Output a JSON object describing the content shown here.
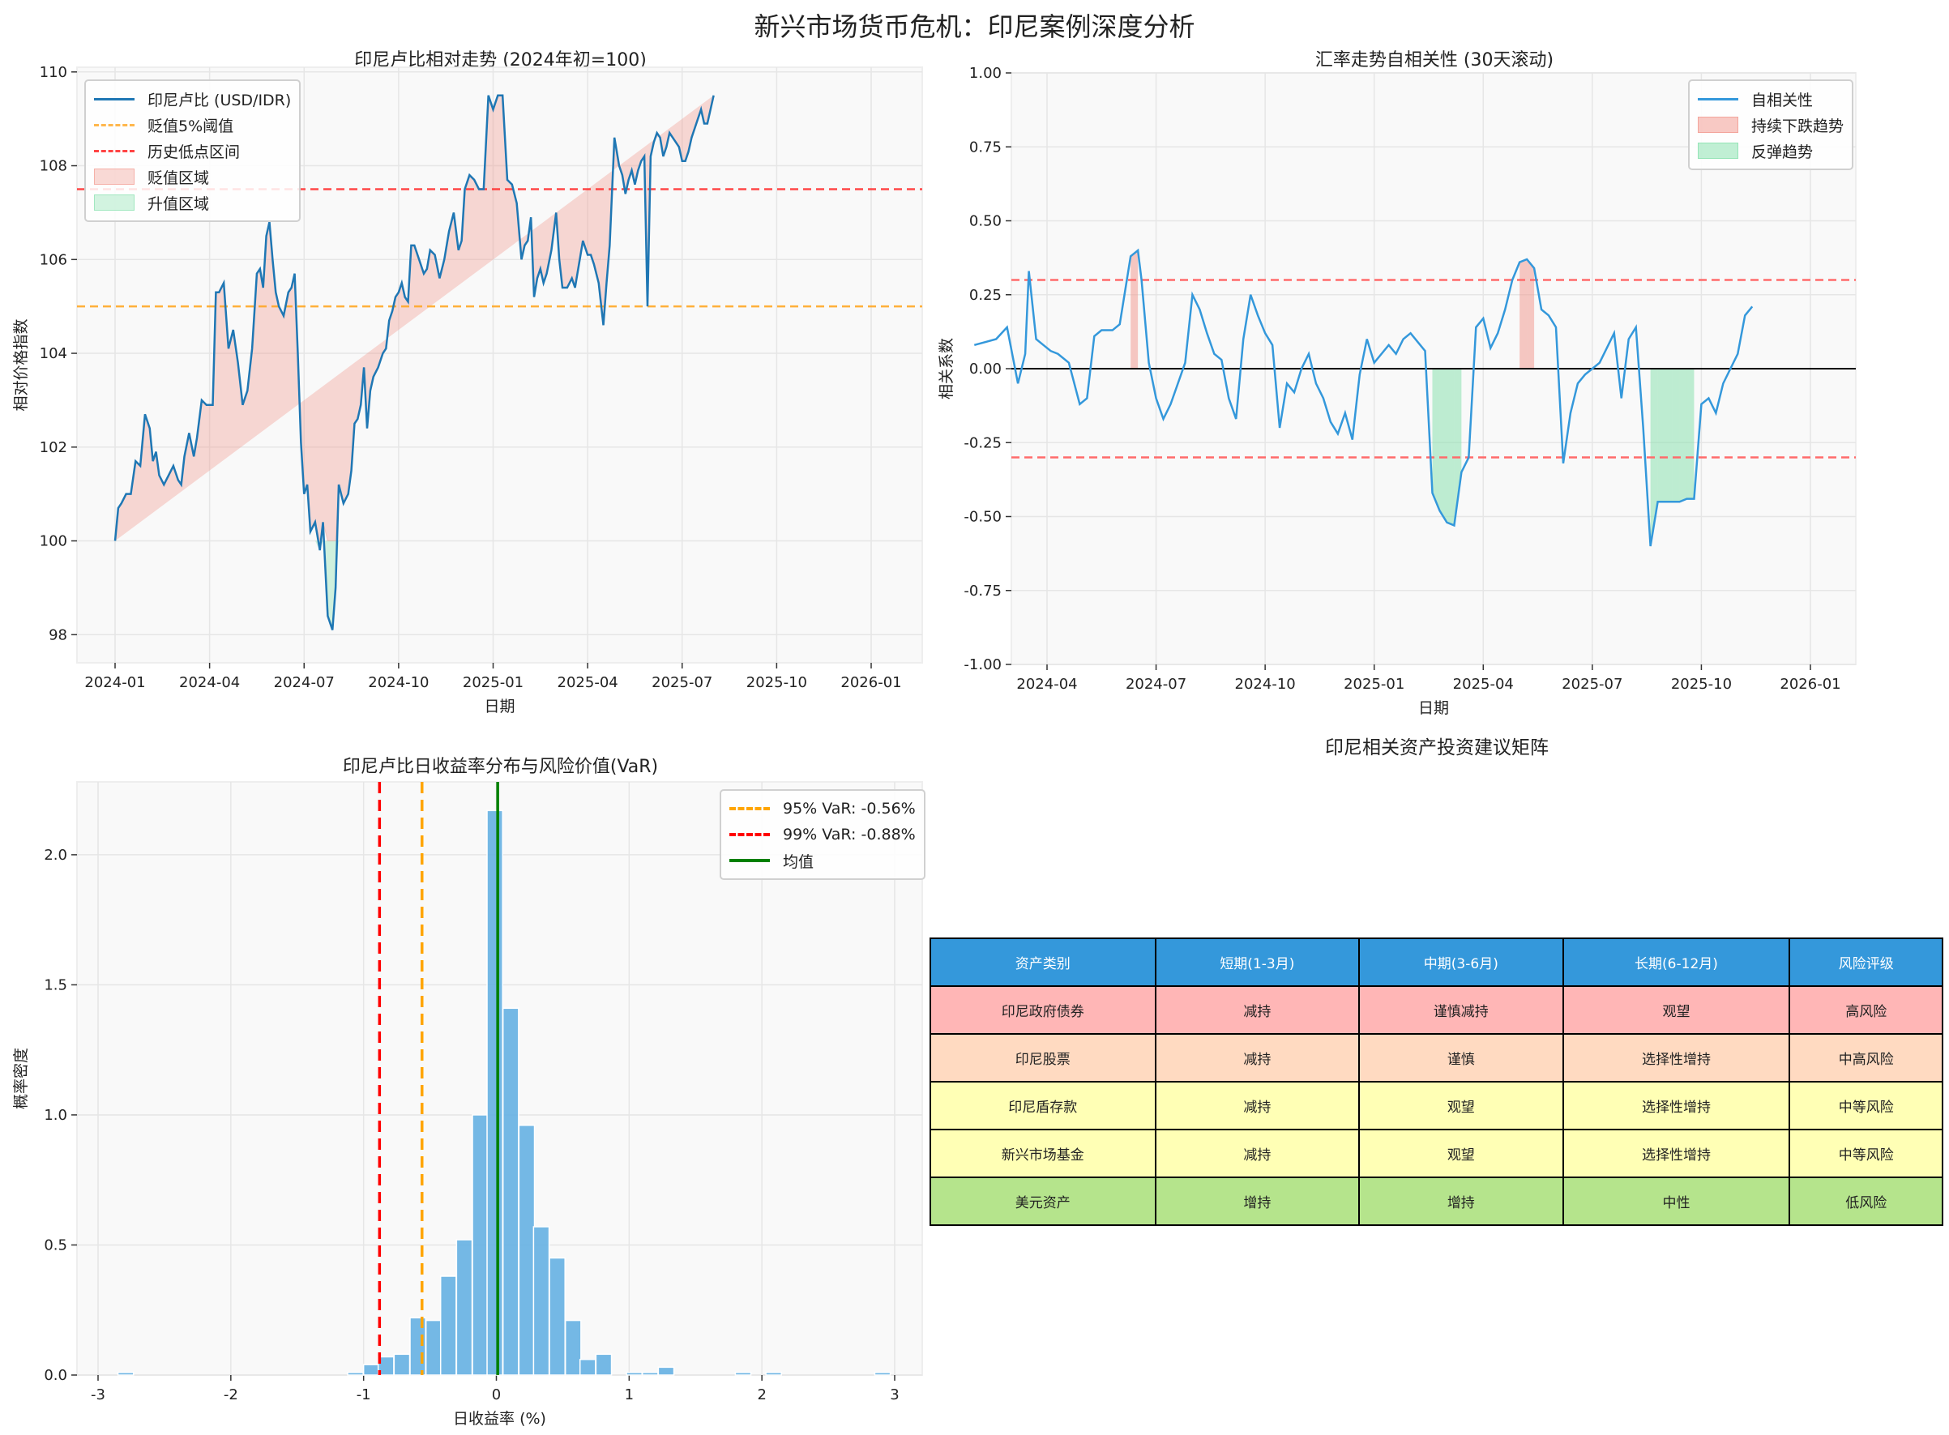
{
  "figure": {
    "suptitle": "新兴市场货币危机：印尼案例深度分析"
  },
  "chart_data": [
    {
      "type": "line",
      "title": "印尼卢比相对走势 (2024年初=100)",
      "xlabel": "日期",
      "ylabel": "相对价格指数",
      "x_ticks": [
        "2024-01",
        "2024-04",
        "2024-07",
        "2024-10",
        "2025-01",
        "2025-04",
        "2025-07",
        "2025-10",
        "2026-01"
      ],
      "y_ticks": [
        "98",
        "100",
        "102",
        "104",
        "106",
        "108",
        "110"
      ],
      "ylim": [
        97.4,
        110.1
      ],
      "grid": true,
      "legend_position": "upper left",
      "legend": [
        "印尼卢比 (USD/IDR)",
        "贬值5%阈值",
        "历史低点区间",
        "贬值区域",
        "升值区域"
      ],
      "hlines": [
        {
          "y": 105,
          "label": "贬值5%阈值",
          "color": "#FFA726"
        },
        {
          "y": 107.5,
          "label": "历史低点区间",
          "color": "#FF3333"
        }
      ],
      "fill_baseline": 100,
      "series": [
        {
          "name": "印尼卢比 (USD/IDR)",
          "color": "#1f77b4",
          "x_month": [
            0,
            0.1,
            0.2,
            0.35,
            0.5,
            0.65,
            0.8,
            0.95,
            1.1,
            1.2,
            1.3,
            1.4,
            1.55,
            1.7,
            1.85,
            2.0,
            2.1,
            2.2,
            2.35,
            2.5,
            2.6,
            2.75,
            2.9,
            3.0,
            3.1,
            3.2,
            3.3,
            3.45,
            3.6,
            3.75,
            3.9,
            4.05,
            4.2,
            4.35,
            4.5,
            4.6,
            4.7,
            4.8,
            4.9,
            5.0,
            5.1,
            5.2,
            5.35,
            5.5,
            5.6,
            5.7,
            5.8,
            5.9,
            6.0,
            6.1,
            6.2,
            6.35,
            6.5,
            6.6,
            6.75,
            6.9,
            7.0,
            7.1,
            7.25,
            7.4,
            7.5,
            7.6,
            7.7,
            7.8,
            7.9,
            8.0,
            8.1,
            8.2,
            8.35,
            8.5,
            8.6,
            8.7,
            8.8,
            8.9,
            9.0,
            9.1,
            9.2,
            9.3,
            9.4,
            9.5,
            9.65,
            9.8,
            9.9,
            10.0,
            10.15,
            10.3,
            10.45,
            10.6,
            10.75,
            10.9,
            11.0,
            11.1,
            11.25,
            11.4,
            11.55,
            11.7,
            11.85,
            12.0,
            12.15,
            12.3,
            12.45,
            12.6,
            12.75,
            12.9,
            13.0,
            13.1,
            13.2,
            13.3,
            13.4,
            13.5,
            13.6,
            13.7,
            13.85,
            14.0,
            14.1,
            14.2,
            14.35,
            14.5,
            14.6,
            14.7,
            14.85,
            15.0,
            15.1,
            15.2,
            15.35,
            15.5,
            15.6,
            15.7,
            15.85,
            16.0,
            16.1,
            16.2,
            16.3,
            16.4,
            16.5,
            16.6,
            16.7,
            16.8,
            16.9,
            17.0,
            17.1,
            17.2,
            17.3,
            17.4,
            17.5,
            17.6,
            17.7,
            17.8,
            17.9,
            18.0,
            18.1,
            18.2,
            18.3,
            18.4,
            18.5,
            18.6,
            18.7,
            18.8,
            18.9,
            19.0,
            19.1,
            19.2,
            19.3,
            19.4,
            19.5,
            19.6,
            19.7,
            19.8,
            19.9,
            20.0,
            20.1,
            20.2,
            20.3,
            20.4,
            20.5,
            20.6,
            20.7,
            20.8,
            20.9,
            21.0,
            21.1,
            21.2,
            21.3,
            21.4,
            21.5,
            21.6,
            21.7,
            21.8,
            21.9,
            22.0,
            22.1,
            22.2,
            22.3,
            22.4,
            22.5,
            22.6,
            22.7,
            22.8,
            22.9,
            23.0,
            23.1,
            23.2,
            23.3,
            23.4,
            23.5,
            23.6,
            23.7,
            23.8,
            23.9,
            24.0,
            24.1,
            24.2,
            24.3,
            24.4
          ],
          "values": [
            100.0,
            100.7,
            100.8,
            101.0,
            101.0,
            101.7,
            101.6,
            102.7,
            102.4,
            101.7,
            101.9,
            101.4,
            101.2,
            101.4,
            101.6,
            101.3,
            101.2,
            101.8,
            102.3,
            101.8,
            102.2,
            103.0,
            102.9,
            102.9,
            102.9,
            105.3,
            105.3,
            105.5,
            104.1,
            104.5,
            103.8,
            102.9,
            103.2,
            104.1,
            105.7,
            105.8,
            105.4,
            106.5,
            106.8,
            106.0,
            105.3,
            105.0,
            104.8,
            105.3,
            105.4,
            105.7,
            104.0,
            102.1,
            101.0,
            101.2,
            100.2,
            100.4,
            99.8,
            100.4,
            98.4,
            98.1,
            99.0,
            101.2,
            100.8,
            101.0,
            101.5,
            102.5,
            102.6,
            102.9,
            103.7,
            102.4,
            103.2,
            103.5,
            103.7,
            104.0,
            104.1,
            104.7,
            104.9,
            105.2,
            105.3,
            105.5,
            105.2,
            105.1,
            106.3,
            106.3,
            106.0,
            105.7,
            105.8,
            106.2,
            106.1,
            105.6,
            106.0,
            106.6,
            107.0,
            106.2,
            106.4,
            107.5,
            107.8,
            107.7,
            107.5,
            107.5,
            109.5,
            109.2,
            109.5,
            109.5,
            107.7,
            107.6,
            107.2,
            106.0,
            106.3,
            106.4,
            106.9,
            105.2,
            105.6,
            105.8,
            105.5,
            105.7,
            106.2,
            107.0,
            106.0,
            105.4,
            105.4,
            105.6,
            105.4,
            105.8,
            106.4,
            106.1,
            106.1,
            105.9,
            105.5,
            104.6,
            105.5,
            106.3,
            108.6,
            108.0,
            107.8,
            107.4,
            107.7,
            107.9,
            107.6,
            107.9,
            108.1,
            108.2,
            105.0,
            108.2,
            108.5,
            108.7,
            108.6,
            108.2,
            108.4,
            108.7,
            108.6,
            108.5,
            108.4,
            108.1,
            108.1,
            108.3,
            108.6,
            108.8,
            109.0,
            109.2,
            108.9,
            108.9,
            109.2,
            109.5
          ],
          "note": "values approximate, read from pixels"
        }
      ]
    },
    {
      "type": "line",
      "title": "汇率走势自相关性 (30天滚动)",
      "xlabel": "日期",
      "ylabel": "相关系数",
      "x_ticks": [
        "2024-04",
        "2024-07",
        "2024-10",
        "2025-01",
        "2025-04",
        "2025-07",
        "2025-10",
        "2026-01"
      ],
      "y_ticks": [
        "-1.00",
        "-0.75",
        "-0.50",
        "-0.25",
        "0.00",
        "0.25",
        "0.50",
        "0.75",
        "1.00"
      ],
      "ylim": [
        -1.0,
        1.0
      ],
      "grid": true,
      "legend_position": "upper right",
      "legend": [
        "自相关性",
        "持续下跌趋势",
        "反弹趋势"
      ],
      "hlines": [
        {
          "y": 0.3,
          "color": "#FF6B6B",
          "style": "dashed"
        },
        {
          "y": -0.3,
          "color": "#FF6B6B",
          "style": "dashed"
        },
        {
          "y": 0,
          "color": "#000000",
          "style": "solid"
        }
      ],
      "series": [
        {
          "name": "自相关性",
          "color": "#3498db",
          "x_month": [
            1.0,
            1.3,
            1.6,
            1.9,
            2.2,
            2.4,
            2.5,
            2.7,
            2.9,
            3.1,
            3.3,
            3.6,
            3.9,
            4.1,
            4.3,
            4.5,
            4.8,
            5.0,
            5.3,
            5.5,
            5.6,
            5.8,
            6.0,
            6.2,
            6.4,
            6.6,
            6.8,
            7.0,
            7.2,
            7.4,
            7.6,
            7.8,
            8.0,
            8.2,
            8.4,
            8.6,
            8.8,
            9.0,
            9.2,
            9.4,
            9.6,
            9.8,
            10.0,
            10.2,
            10.4,
            10.6,
            10.8,
            11.0,
            11.2,
            11.4,
            11.6,
            11.8,
            12.0,
            12.2,
            12.4,
            12.6,
            12.8,
            13.0,
            13.2,
            13.4,
            13.6,
            13.8,
            14.0,
            14.2,
            14.4,
            14.6,
            14.8,
            15.0,
            15.2,
            15.4,
            15.6,
            15.8,
            16.0,
            16.2,
            16.4,
            16.6,
            16.8,
            17.0,
            17.2,
            17.4,
            17.6,
            17.8,
            18.0,
            18.2,
            18.4,
            18.6,
            18.8,
            19.0,
            19.2,
            19.4,
            19.6,
            19.8,
            20.0,
            20.2,
            20.4,
            20.6,
            20.8,
            21.0,
            21.2,
            21.4,
            21.6,
            21.8,
            22.0,
            22.2,
            22.4,
            22.6,
            22.8,
            23.0,
            23.2,
            23.4,
            23.6,
            23.8,
            24.0,
            24.2,
            24.4
          ],
          "values": [
            0.08,
            0.09,
            0.1,
            0.14,
            -0.05,
            0.05,
            0.33,
            0.1,
            0.08,
            0.06,
            0.05,
            0.02,
            -0.12,
            -0.1,
            0.11,
            0.13,
            0.13,
            0.15,
            0.38,
            0.4,
            0.3,
            0.02,
            -0.1,
            -0.17,
            -0.12,
            -0.05,
            0.02,
            0.25,
            0.2,
            0.12,
            0.05,
            0.03,
            -0.1,
            -0.17,
            0.1,
            0.25,
            0.18,
            0.12,
            0.08,
            -0.2,
            -0.05,
            -0.08,
            0.0,
            0.05,
            -0.05,
            -0.1,
            -0.18,
            -0.22,
            -0.15,
            -0.24,
            -0.02,
            0.1,
            0.02,
            0.05,
            0.08,
            0.05,
            0.1,
            0.12,
            0.09,
            0.06,
            -0.42,
            -0.48,
            -0.52,
            -0.53,
            -0.35,
            -0.3,
            0.14,
            0.17,
            0.07,
            0.12,
            0.2,
            0.3,
            0.36,
            0.37,
            0.34,
            0.2,
            0.18,
            0.14,
            -0.32,
            -0.15,
            -0.05,
            -0.02,
            0.0,
            0.02,
            0.07,
            0.12,
            -0.1,
            0.1,
            0.14,
            -0.2,
            -0.6,
            -0.45,
            -0.45,
            -0.45,
            -0.45,
            -0.44,
            -0.44,
            -0.12,
            -0.1,
            -0.15,
            -0.05,
            0.0,
            0.05,
            0.18,
            0.21
          ],
          "note": "values approximate, read from pixels"
        }
      ],
      "fills": [
        {
          "label": "持续下跌趋势",
          "color": "#F1948A",
          "condition": "value > 0.3"
        },
        {
          "label": "反弹趋势",
          "color": "#82E0AA",
          "condition": "value < -0.3"
        }
      ]
    },
    {
      "type": "bar",
      "subtype": "histogram",
      "title": "印尼卢比日收益率分布与风险价值(VaR)",
      "xlabel": "日收益率 (%)",
      "ylabel": "概率密度",
      "x_ticks": [
        "-3",
        "-2",
        "-1",
        "0",
        "1",
        "2",
        "3"
      ],
      "y_ticks": [
        "0.0",
        "0.5",
        "1.0",
        "1.5",
        "2.0"
      ],
      "xlim": [
        -3.15,
        3.2
      ],
      "ylim": [
        0,
        2.28
      ],
      "grid": true,
      "legend_position": "upper right",
      "legend": [
        "95% VaR: -0.56%",
        "99% VaR: -0.88%",
        "均值"
      ],
      "bin_width": 0.117,
      "bin_left_edges": [
        -2.85,
        -1.12,
        -1.0,
        -0.89,
        -0.77,
        -0.65,
        -0.53,
        -0.42,
        -0.3,
        -0.18,
        -0.07,
        0.05,
        0.17,
        0.28,
        0.4,
        0.52,
        0.63,
        0.75,
        0.98,
        1.1,
        1.22,
        1.8,
        2.03,
        2.85
      ],
      "values": [
        0.01,
        0.01,
        0.04,
        0.07,
        0.08,
        0.22,
        0.21,
        0.38,
        0.52,
        1.0,
        2.17,
        1.41,
        0.96,
        0.57,
        0.45,
        0.21,
        0.06,
        0.08,
        0.01,
        0.01,
        0.03,
        0.01,
        0.01,
        0.01
      ],
      "bar_color": "#5DADE2",
      "vlines": [
        {
          "x": -0.56,
          "label": "95% VaR: -0.56%",
          "color": "#FFA500",
          "style": "dashed"
        },
        {
          "x": -0.88,
          "label": "99% VaR: -0.88%",
          "color": "#FF0000",
          "style": "dashed"
        },
        {
          "x": 0.01,
          "label": "均值",
          "color": "#008000",
          "style": "solid"
        }
      ]
    },
    {
      "type": "table",
      "title": "印尼相关资产投资建议矩阵",
      "columns": [
        "资产类别",
        "短期(1-3月)",
        "中期(3-6月)",
        "长期(6-12月)",
        "风险评级"
      ],
      "rows": [
        [
          "印尼政府债券",
          "减持",
          "谨慎减持",
          "观望",
          "高风险"
        ],
        [
          "印尼股票",
          "减持",
          "谨慎",
          "选择性增持",
          "中高风险"
        ],
        [
          "印尼盾存款",
          "减持",
          "观望",
          "选择性增持",
          "中等风险"
        ],
        [
          "新兴市场基金",
          "减持",
          "观望",
          "选择性增持",
          "中等风险"
        ],
        [
          "美元资产",
          "增持",
          "增持",
          "中性",
          "低风险"
        ]
      ],
      "row_colors": [
        "#FFB6B6",
        "#FFDAC1",
        "#FFFFB5",
        "#FFFFB5",
        "#B5E48C"
      ],
      "header_color": "#3498DB"
    }
  ],
  "panels": {
    "p1": {
      "legend": [
        {
          "label": "印尼卢比 (USD/IDR)"
        },
        {
          "label": "贬值5%阈值"
        },
        {
          "label": "历史低点区间"
        },
        {
          "label": "贬值区域"
        },
        {
          "label": "升值区域"
        }
      ]
    },
    "p2": {
      "legend": [
        {
          "label": "自相关性"
        },
        {
          "label": "持续下跌趋势"
        },
        {
          "label": "反弹趋势"
        }
      ]
    },
    "p3": {
      "legend": [
        {
          "label": "95% VaR: -0.56%"
        },
        {
          "label": "99% VaR: -0.88%"
        },
        {
          "label": "均值"
        }
      ]
    }
  }
}
